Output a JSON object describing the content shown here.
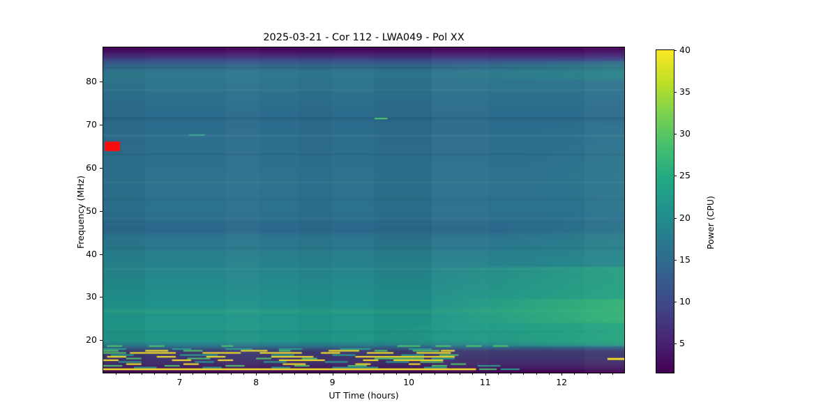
{
  "figure": {
    "title": "2025-03-21 - Cor 112 - LWA049 - Pol XX",
    "xlabel": "UT Time (hours)",
    "ylabel": "Frequency (MHz)",
    "colorbar_label": "Power (CPU)"
  },
  "chart_data": {
    "type": "heatmap",
    "title": "2025-03-21 - Cor 112 - LWA049 - Pol XX",
    "xlabel": "UT Time (hours)",
    "ylabel": "Frequency (MHz)",
    "x_range": [
      6.0,
      12.82
    ],
    "x_ticks": [
      7,
      8,
      9,
      10,
      11,
      12
    ],
    "x_minor_step": 0.16667,
    "y_range": [
      12.4,
      88.0
    ],
    "y_ticks": [
      20,
      30,
      40,
      50,
      60,
      70,
      80
    ],
    "grid": false,
    "colormap": "viridis",
    "colorbar": {
      "label": "Power (CPU)",
      "range": [
        1.5,
        40
      ],
      "ticks": [
        5,
        10,
        15,
        20,
        25,
        30,
        35,
        40
      ],
      "gradient": [
        {
          "p": 0.0,
          "c": "#fde725"
        },
        {
          "p": 0.1,
          "c": "#bddf26"
        },
        {
          "p": 0.2,
          "c": "#7ad151"
        },
        {
          "p": 0.3,
          "c": "#44bf70"
        },
        {
          "p": 0.4,
          "c": "#22a884"
        },
        {
          "p": 0.5,
          "c": "#21918c"
        },
        {
          "p": 0.6,
          "c": "#2a788e"
        },
        {
          "p": 0.7,
          "c": "#355f8d"
        },
        {
          "p": 0.8,
          "c": "#414487"
        },
        {
          "p": 0.9,
          "c": "#482475"
        },
        {
          "p": 1.0,
          "c": "#440154"
        }
      ]
    },
    "background_freq_stops": [
      {
        "f": 88.0,
        "c": "#440154"
      },
      {
        "f": 87.1,
        "c": "#471063"
      },
      {
        "f": 85.9,
        "c": "#472f7d"
      },
      {
        "f": 84.9,
        "c": "#3d4e8a"
      },
      {
        "f": 83.7,
        "c": "#346a8e"
      },
      {
        "f": 82.0,
        "c": "#2f798e"
      },
      {
        "f": 76.0,
        "c": "#2d6f8d"
      },
      {
        "f": 71.5,
        "c": "#2c6b8d"
      },
      {
        "f": 66.0,
        "c": "#2d6e8e"
      },
      {
        "f": 58.0,
        "c": "#2e728e"
      },
      {
        "f": 50.0,
        "c": "#2c718e"
      },
      {
        "f": 45.3,
        "c": "#2b678b"
      },
      {
        "f": 44.4,
        "c": "#2d738e"
      },
      {
        "f": 40.0,
        "c": "#297f8e"
      },
      {
        "f": 34.0,
        "c": "#24898c"
      },
      {
        "f": 28.0,
        "c": "#21938b"
      },
      {
        "f": 23.0,
        "c": "#21988a"
      },
      {
        "f": 19.8,
        "c": "#229488"
      },
      {
        "f": 18.7,
        "c": "#2a788e"
      },
      {
        "f": 17.4,
        "c": "#3f3c73"
      },
      {
        "f": 16.0,
        "c": "#3e3670"
      },
      {
        "f": 14.5,
        "c": "#432c6b"
      },
      {
        "f": 13.4,
        "c": "#451960"
      },
      {
        "f": 12.4,
        "c": "#440154"
      }
    ],
    "h_bands": [
      {
        "f0": 83.0,
        "f1": 83.5,
        "c": "#14475f",
        "a": 0.2
      },
      {
        "f0": 77.9,
        "f1": 78.35,
        "c": "#bfe8dd",
        "a": 0.06
      },
      {
        "f0": 71.1,
        "f1": 71.8,
        "c": "#123c5a",
        "a": 0.16
      },
      {
        "f0": 67.2,
        "f1": 67.8,
        "c": "#bfe8dd",
        "a": 0.07
      },
      {
        "f0": 62.9,
        "f1": 63.4,
        "c": "#123c5a",
        "a": 0.1
      },
      {
        "f0": 56.4,
        "f1": 56.9,
        "c": "#bfe8dd",
        "a": 0.05
      },
      {
        "f0": 52.3,
        "f1": 52.9,
        "c": "#123c5a",
        "a": 0.1
      },
      {
        "f0": 48.0,
        "f1": 48.5,
        "c": "#bfe8dd",
        "a": 0.05
      },
      {
        "f0": 41.0,
        "f1": 41.6,
        "c": "#123c5a",
        "a": 0.08
      },
      {
        "f0": 36.2,
        "f1": 36.7,
        "c": "#bfe8dd",
        "a": 0.05
      },
      {
        "f0": 26.2,
        "f1": 27.3,
        "c": "#6ed86a",
        "a": 0.1
      },
      {
        "f0": 21.6,
        "f1": 22.1,
        "c": "#123c5a",
        "a": 0.08
      }
    ],
    "v_bands": [
      {
        "t0": 6.0,
        "t1": 6.55,
        "c": "#000000",
        "a": 0.03
      },
      {
        "t0": 7.6,
        "t1": 8.05,
        "c": "#ffffff",
        "a": 0.025
      },
      {
        "t0": 8.55,
        "t1": 9.0,
        "c": "#000000",
        "a": 0.02
      },
      {
        "t0": 9.55,
        "t1": 10.3,
        "c": "#000000",
        "a": 0.035
      },
      {
        "t0": 10.3,
        "t1": 11.05,
        "c": "#ffffff",
        "a": 0.02
      },
      {
        "t0": 12.3,
        "t1": 12.82,
        "c": "#ffffff",
        "a": 0.03
      }
    ],
    "tints": [
      {
        "t0": 10.15,
        "t1": 12.82,
        "f0": 18.6,
        "f1": 37.0,
        "c": "#2fb47c",
        "a0": 0,
        "a1": 0.55
      },
      {
        "t0": 10.5,
        "t1": 12.82,
        "f0": 24.0,
        "f1": 29.5,
        "c": "#55ca66",
        "a0": 0,
        "a1": 0.35
      },
      {
        "t0": 9.0,
        "t1": 10.3,
        "f0": 18.8,
        "f1": 23.5,
        "c": "#2aa57f",
        "a0": 0,
        "a1": 0.22
      },
      {
        "t0": 11.2,
        "t1": 12.82,
        "f0": 37.0,
        "f1": 47.0,
        "c": "#27a383",
        "a0": 0,
        "a1": 0.2
      },
      {
        "t0": 10.5,
        "t1": 12.82,
        "f0": 80.5,
        "f1": 84.8,
        "c": "#27a383",
        "a0": 0,
        "a1": 0.28
      },
      {
        "t0": 11.5,
        "t1": 12.82,
        "f0": 47.0,
        "f1": 70.0,
        "c": "#27988b",
        "a0": 0,
        "a1": 0.12
      }
    ],
    "rfi_palette": {
      "Y": "#fde725",
      "G": "#50c46a",
      "T": "#2a9d8f"
    },
    "rfi_segments": [
      [
        18.6,
        6.05,
        6.25,
        "G"
      ],
      [
        18.6,
        6.6,
        6.8,
        "G"
      ],
      [
        18.6,
        7.55,
        7.7,
        "G"
      ],
      [
        18.6,
        9.85,
        10.15,
        "G"
      ],
      [
        18.6,
        10.35,
        10.55,
        "G"
      ],
      [
        18.6,
        10.75,
        10.95,
        "G"
      ],
      [
        18.6,
        11.1,
        11.3,
        "G"
      ],
      [
        17.9,
        6.0,
        6.3,
        "T"
      ],
      [
        17.9,
        6.9,
        7.15,
        "T"
      ],
      [
        17.9,
        7.6,
        7.95,
        "T"
      ],
      [
        17.9,
        8.3,
        8.6,
        "T"
      ],
      [
        17.9,
        9.1,
        9.5,
        "T"
      ],
      [
        17.9,
        10.0,
        10.3,
        "T"
      ],
      [
        17.5,
        6.0,
        6.2,
        "G"
      ],
      [
        17.5,
        6.55,
        6.85,
        "Y"
      ],
      [
        17.5,
        7.05,
        7.3,
        "G"
      ],
      [
        17.5,
        7.8,
        8.15,
        "Y"
      ],
      [
        17.5,
        8.3,
        8.45,
        "G"
      ],
      [
        17.5,
        8.95,
        9.35,
        "Y"
      ],
      [
        17.5,
        9.55,
        9.72,
        "G"
      ],
      [
        17.5,
        10.05,
        10.4,
        "G"
      ],
      [
        17.5,
        10.42,
        10.6,
        "Y"
      ],
      [
        17.0,
        6.0,
        6.3,
        "G"
      ],
      [
        17.0,
        6.35,
        6.95,
        "Y"
      ],
      [
        17.0,
        7.3,
        7.8,
        "Y"
      ],
      [
        17.0,
        8.05,
        8.6,
        "Y"
      ],
      [
        17.0,
        8.85,
        9.1,
        "Y"
      ],
      [
        17.0,
        9.45,
        9.8,
        "Y"
      ],
      [
        17.0,
        10.1,
        10.55,
        "Y"
      ],
      [
        16.5,
        6.1,
        6.4,
        "T"
      ],
      [
        16.5,
        7.0,
        7.5,
        "T"
      ],
      [
        16.5,
        8.2,
        8.5,
        "T"
      ],
      [
        16.5,
        9.0,
        9.3,
        "T"
      ],
      [
        16.5,
        9.9,
        10.2,
        "T"
      ],
      [
        16.5,
        10.4,
        10.65,
        "G"
      ],
      [
        16.1,
        6.05,
        6.3,
        "Y"
      ],
      [
        16.1,
        6.7,
        6.95,
        "Y"
      ],
      [
        16.1,
        7.35,
        7.6,
        "Y"
      ],
      [
        16.1,
        8.2,
        8.75,
        "Y"
      ],
      [
        16.1,
        9.3,
        10.6,
        "Y"
      ],
      [
        15.7,
        6.3,
        6.5,
        "G"
      ],
      [
        15.7,
        7.1,
        7.4,
        "G"
      ],
      [
        15.7,
        8.0,
        8.2,
        "G"
      ],
      [
        15.7,
        8.6,
        8.8,
        "G"
      ],
      [
        15.7,
        9.55,
        10.2,
        "G"
      ],
      [
        15.7,
        10.3,
        10.6,
        "T"
      ],
      [
        15.6,
        12.6,
        12.82,
        "Y",
        0.45
      ],
      [
        15.3,
        6.0,
        6.2,
        "Y"
      ],
      [
        15.3,
        6.9,
        7.15,
        "Y"
      ],
      [
        15.3,
        7.5,
        7.7,
        "Y"
      ],
      [
        15.3,
        8.3,
        8.9,
        "Y"
      ],
      [
        15.3,
        9.4,
        9.6,
        "Y"
      ],
      [
        15.3,
        9.8,
        10.45,
        "Y"
      ],
      [
        14.9,
        6.2,
        6.5,
        "T"
      ],
      [
        14.9,
        7.2,
        7.45,
        "T"
      ],
      [
        14.9,
        8.1,
        8.4,
        "T"
      ],
      [
        14.9,
        8.9,
        9.2,
        "T"
      ],
      [
        14.9,
        9.7,
        10.0,
        "T"
      ],
      [
        14.9,
        10.15,
        10.45,
        "G"
      ],
      [
        14.4,
        6.3,
        6.5,
        "Y"
      ],
      [
        14.4,
        7.05,
        7.25,
        "Y"
      ],
      [
        14.4,
        8.35,
        8.65,
        "Y"
      ],
      [
        14.4,
        9.3,
        9.5,
        "Y"
      ],
      [
        14.4,
        10.0,
        10.15,
        "Y"
      ],
      [
        14.4,
        10.55,
        10.75,
        "G"
      ],
      [
        14.0,
        6.0,
        6.25,
        "G"
      ],
      [
        14.0,
        6.8,
        7.0,
        "G"
      ],
      [
        14.0,
        7.6,
        7.85,
        "G"
      ],
      [
        14.0,
        8.5,
        8.7,
        "G"
      ],
      [
        14.0,
        9.2,
        9.45,
        "G"
      ],
      [
        14.0,
        10.3,
        10.5,
        "G"
      ],
      [
        14.0,
        10.9,
        11.2,
        "T"
      ],
      [
        13.6,
        6.4,
        6.7,
        "T"
      ],
      [
        13.6,
        7.3,
        7.55,
        "T"
      ],
      [
        13.6,
        8.2,
        8.45,
        "T"
      ],
      [
        13.6,
        9.0,
        9.6,
        "T"
      ],
      [
        13.6,
        10.2,
        10.5,
        "T"
      ],
      [
        13.2,
        6.0,
        10.88,
        "Y",
        0.4
      ],
      [
        13.2,
        10.92,
        11.15,
        "G"
      ],
      [
        13.2,
        11.2,
        11.45,
        "T"
      ]
    ],
    "masked_patch": {
      "t0": 6.02,
      "t1": 6.22,
      "f0": 63.9,
      "f1": 66.1,
      "c": "#fb0d0d"
    },
    "highlights": [
      {
        "t0": 9.55,
        "t1": 9.72,
        "f0": 71.3,
        "f1": 71.62,
        "c": "#55d06b"
      },
      {
        "t0": 7.12,
        "t1": 7.33,
        "f0": 67.5,
        "f1": 67.78,
        "c": "#43ae98"
      }
    ]
  }
}
